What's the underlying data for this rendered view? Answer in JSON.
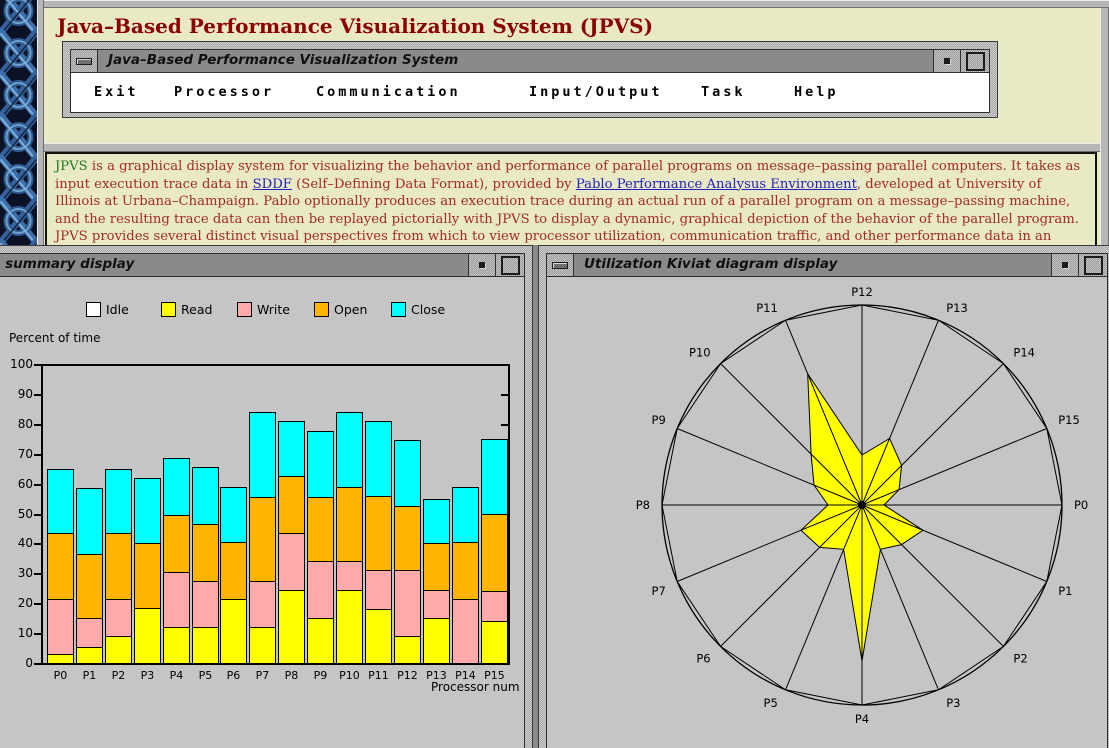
{
  "page": {
    "title": "Java–Based Performance Visualization System (JPVS)",
    "background_color": "#E9E9C6",
    "title_color": "#8B0000"
  },
  "menu_window": {
    "title": "Java–Based Performance Visualization System",
    "menu_items": [
      {
        "label": "Exit"
      },
      {
        "label": "Processor"
      },
      {
        "label": "Communication"
      },
      {
        "label": "Input/Output"
      },
      {
        "label": "Task"
      },
      {
        "label": "Help"
      }
    ]
  },
  "window_chrome": {
    "icons": {
      "window_menu": "dash-icon",
      "iconify": "dot-icon",
      "maximize": "square-icon"
    }
  },
  "description": {
    "segments": [
      {
        "text": "JPVS",
        "style": "green",
        "name": "jpvs-word"
      },
      {
        "text": " is a graphical display system for visualizing the behavior and performance of parallel programs on message–passing parallel computers. It takes as input execution trace data in ",
        "style": "plain"
      },
      {
        "text": "SDDF",
        "style": "link",
        "name": "sddf-link"
      },
      {
        "text": " (Self–Defining Data Format), provided by ",
        "style": "plain"
      },
      {
        "text": "Pablo Performance Analysus Environment",
        "style": "link",
        "name": "pablo-link"
      },
      {
        "text": ", developed at University of Illinois at Urbana–Champaign. Pablo optionally produces an execution trace during an actual run of a parallel program on a message–passing machine, and the resulting trace data can then be replayed pictorially with JPVS to display a dynamic, graphical depiction of the behavior of the parallel program. JPVS provides several distinct visual perspectives from which to view processor utilization, communication traffic, and other performance data in an attempt to gain insights that",
        "style": "plain"
      }
    ]
  },
  "io_window": {
    "title": "I/O summary display",
    "chart_data": {
      "type": "bar",
      "stacked": true,
      "ylabel": "Percent of time",
      "xlabel": "Processor num",
      "ylim": [
        0,
        100
      ],
      "yticks": [
        0,
        10,
        20,
        30,
        40,
        50,
        60,
        70,
        80,
        90,
        100
      ],
      "categories": [
        "P0",
        "P1",
        "P2",
        "P3",
        "P4",
        "P5",
        "P6",
        "P7",
        "P8",
        "P9",
        "P10",
        "P11",
        "P12",
        "P13",
        "P14",
        "P15"
      ],
      "series": [
        {
          "name": "Read",
          "color": "#FFFF00",
          "values": [
            3,
            5.5,
            9,
            18.5,
            12,
            12,
            21.5,
            12,
            24.5,
            15,
            24.5,
            18,
            9,
            15,
            0,
            14
          ]
        },
        {
          "name": "Write",
          "color": "#FFAAAA",
          "values": [
            18.5,
            9.5,
            12.5,
            0,
            18.5,
            15.5,
            0,
            15.5,
            19,
            19,
            9.5,
            13,
            22,
            9.5,
            21.5,
            10
          ]
        },
        {
          "name": "Open",
          "color": "#FFB400",
          "values": [
            22,
            21.5,
            22,
            21.5,
            19,
            19,
            19,
            28,
            19,
            21.5,
            25,
            25,
            21.5,
            15.5,
            19,
            26
          ]
        },
        {
          "name": "Close",
          "color": "#00FFFF",
          "values": [
            21.5,
            22,
            21.5,
            22,
            19,
            19,
            18.5,
            28.5,
            18.5,
            22,
            25,
            25,
            22,
            15,
            18.5,
            25
          ]
        }
      ],
      "legend": [
        {
          "label": "Idle",
          "color": "#FFFFFF"
        },
        {
          "label": "Read",
          "color": "#FFFF00"
        },
        {
          "label": "Write",
          "color": "#FFAAAA"
        },
        {
          "label": "Open",
          "color": "#FFB400"
        },
        {
          "label": "Close",
          "color": "#00FFFF"
        }
      ],
      "legend_position": "top"
    }
  },
  "kiviat_window": {
    "title": "Utilization Kiviat diagram display",
    "chart_data": {
      "type": "radar",
      "categories": [
        "P0",
        "P1",
        "P2",
        "P3",
        "P4",
        "P5",
        "P6",
        "P7",
        "P8",
        "P9",
        "P10",
        "P11",
        "P12",
        "P13",
        "P14",
        "P15"
      ],
      "values": [
        0.11,
        0.33,
        0.28,
        0.24,
        0.78,
        0.24,
        0.3,
        0.33,
        0.17,
        0.26,
        0.36,
        0.71,
        0.25,
        0.36,
        0.28,
        0.2
      ],
      "max": 1.0,
      "fill_color": "#FFFF00",
      "line_color": "#000000"
    }
  }
}
